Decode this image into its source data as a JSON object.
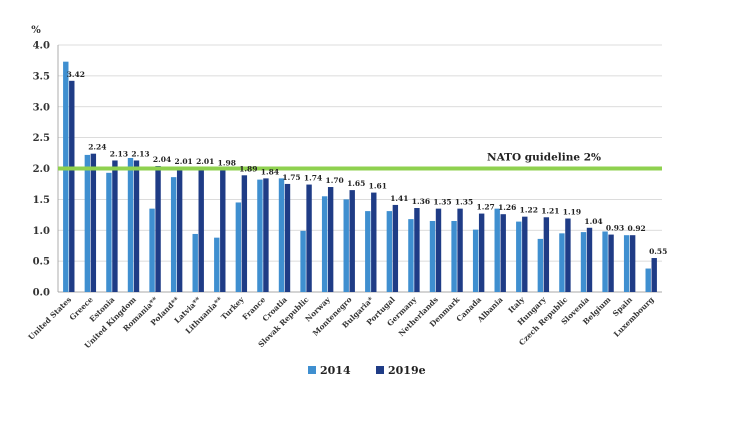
{
  "chart_data": {
    "type": "bar",
    "ylabel": "%",
    "ylim": [
      0,
      4.0
    ],
    "yticks": [
      "0.0",
      "0.5",
      "1.0",
      "1.5",
      "2.0",
      "2.5",
      "3.0",
      "3.5",
      "4.0"
    ],
    "grid": true,
    "legend_position": "bottom-center",
    "categories": [
      "United States",
      "Greece",
      "Estonia",
      "United Kingdom",
      "Romania**",
      "Poland**",
      "Latvia**",
      "Lithuania**",
      "Turkey",
      "France",
      "Croatia",
      "Slovak Republic",
      "Norway",
      "Montenegro",
      "Bulgaria*",
      "Portugal",
      "Germany",
      "Netherlands",
      "Denmark",
      "Canada",
      "Albania",
      "Italy",
      "Hungary",
      "Czech Republic",
      "Slovenia",
      "Belgium",
      "Spain",
      "Luxembourg"
    ],
    "series": [
      {
        "name": "2014",
        "color": "#3f8fd0",
        "values": [
          3.73,
          2.22,
          1.93,
          2.17,
          1.35,
          1.86,
          0.94,
          0.88,
          1.45,
          1.82,
          1.84,
          0.99,
          1.55,
          1.5,
          1.31,
          1.31,
          1.18,
          1.15,
          1.15,
          1.01,
          1.35,
          1.14,
          0.86,
          0.95,
          0.97,
          0.98,
          0.92,
          0.38
        ]
      },
      {
        "name": "2019e",
        "color": "#1f3c86",
        "values": [
          3.42,
          2.24,
          2.13,
          2.13,
          2.04,
          2.01,
          2.01,
          1.98,
          1.89,
          1.84,
          1.75,
          1.74,
          1.7,
          1.65,
          1.61,
          1.41,
          1.36,
          1.35,
          1.35,
          1.27,
          1.26,
          1.22,
          1.21,
          1.19,
          1.04,
          0.93,
          0.92,
          0.55
        ]
      }
    ],
    "data_labels": [
      "3.42",
      "2.24",
      "2.13",
      "2.13",
      "2.04",
      "2.01",
      "2.01",
      "1.98",
      "1.89",
      "1.84",
      "1.75",
      "1.74",
      "1.70",
      "1.65",
      "1.61",
      "1.41",
      "1.36",
      "1.35",
      "1.35",
      "1.27",
      "1.26",
      "1.22",
      "1.21",
      "1.19",
      "1.04",
      "0.93",
      "0.92",
      "0.55"
    ],
    "reference_line": {
      "label": "NATO guideline 2%",
      "value": 2.0,
      "color": "#8fd14f"
    }
  }
}
